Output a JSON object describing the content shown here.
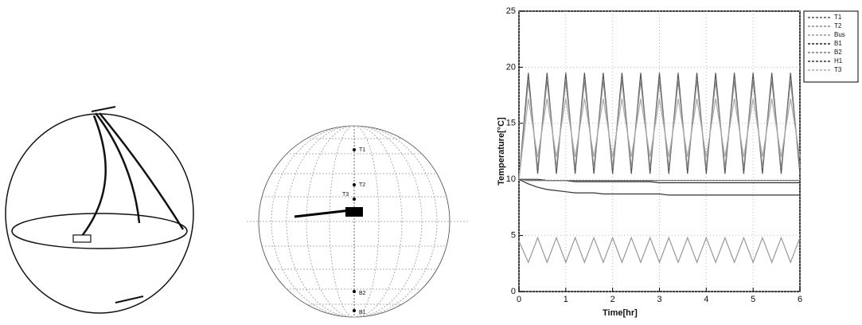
{
  "diagram": {
    "globe_labels": [
      "T1",
      "T2",
      "T3",
      "B2",
      "B1"
    ]
  },
  "chart_data": {
    "type": "line",
    "x_label": "Time[hr]",
    "y_label": "Temperature[°C]",
    "x": [
      0,
      0.2,
      0.4,
      0.6,
      0.8,
      1,
      1.2,
      1.4,
      1.6,
      1.8,
      2,
      2.2,
      2.4,
      2.6,
      2.8,
      3,
      3.2,
      3.4,
      3.6,
      3.8,
      4,
      4.2,
      4.4,
      4.6,
      4.8,
      5,
      5.2,
      5.4,
      5.6,
      5.8,
      6
    ],
    "series": [
      {
        "name": "T1",
        "color": "#555555",
        "values": [
          10,
          19.5,
          10.5,
          19.5,
          10.5,
          19.5,
          10.5,
          19.5,
          10.5,
          19.5,
          10.5,
          19.5,
          10.5,
          19.5,
          10.5,
          19.5,
          10.5,
          19.5,
          10.5,
          19.5,
          10.5,
          19.5,
          10.5,
          19.5,
          10.5,
          19.5,
          10.5,
          19.5,
          10.5,
          19.5,
          10.5
        ]
      },
      {
        "name": "T2",
        "color": "#888888",
        "values": [
          10,
          18.8,
          11,
          18.8,
          11,
          18.8,
          11,
          18.8,
          11,
          18.8,
          11,
          18.8,
          11,
          18.8,
          11,
          18.8,
          11,
          18.8,
          11,
          18.8,
          11,
          18.8,
          11,
          18.8,
          11,
          18.8,
          11,
          18.8,
          11,
          18.8,
          11
        ]
      },
      {
        "name": "Bus",
        "color": "#999999",
        "values": [
          4.5,
          2.6,
          4.8,
          2.6,
          4.8,
          2.6,
          4.8,
          2.6,
          4.8,
          2.6,
          4.8,
          2.6,
          4.8,
          2.6,
          4.8,
          2.6,
          4.8,
          2.6,
          4.8,
          2.6,
          4.8,
          2.6,
          4.8,
          2.6,
          4.8,
          2.6,
          4.8,
          2.6,
          4.8,
          2.6,
          4.8
        ]
      },
      {
        "name": "B1",
        "color": "#222222",
        "values": [
          10,
          10,
          10,
          9.9,
          9.9,
          9.9,
          9.8,
          9.8,
          9.8,
          9.8,
          9.8,
          9.8,
          9.8,
          9.8,
          9.8,
          9.7,
          9.7,
          9.7,
          9.7,
          9.7,
          9.7,
          9.7,
          9.7,
          9.7,
          9.7,
          9.7,
          9.7,
          9.7,
          9.7,
          9.7,
          9.7
        ]
      },
      {
        "name": "B2",
        "color": "#777777",
        "values": [
          10,
          9.9,
          9.9,
          9.9,
          9.9,
          9.9,
          9.9,
          9.9,
          9.9,
          9.9,
          9.9,
          9.9,
          9.9,
          9.9,
          9.9,
          9.9,
          9.9,
          9.9,
          9.9,
          9.9,
          9.9,
          9.9,
          9.9,
          9.9,
          9.9,
          9.9,
          9.9,
          9.9,
          9.9,
          9.9,
          9.9
        ]
      },
      {
        "name": "H1",
        "color": "#333333",
        "values": [
          10,
          9.6,
          9.3,
          9.1,
          9,
          8.9,
          8.8,
          8.8,
          8.8,
          8.7,
          8.7,
          8.7,
          8.7,
          8.7,
          8.7,
          8.7,
          8.6,
          8.6,
          8.6,
          8.6,
          8.6,
          8.6,
          8.6,
          8.6,
          8.6,
          8.6,
          8.6,
          8.6,
          8.6,
          8.6,
          8.6
        ]
      },
      {
        "name": "T3",
        "color": "#aaaaaa",
        "values": [
          10,
          17.2,
          12,
          17.2,
          12,
          17.2,
          12,
          17.2,
          12,
          17.2,
          12,
          17.2,
          12,
          17.2,
          12,
          17.2,
          12,
          17.2,
          12,
          17.2,
          12,
          17.2,
          12,
          17.2,
          12,
          17.2,
          12,
          17.2,
          12,
          17.2,
          12
        ]
      }
    ],
    "xlim": [
      0,
      6
    ],
    "xticks": [
      0,
      1,
      2,
      3,
      4,
      5,
      6
    ],
    "ylim": [
      0,
      25
    ],
    "yticks": [
      0,
      5,
      10,
      15,
      20,
      25
    ],
    "grid": true,
    "legend": "right"
  }
}
